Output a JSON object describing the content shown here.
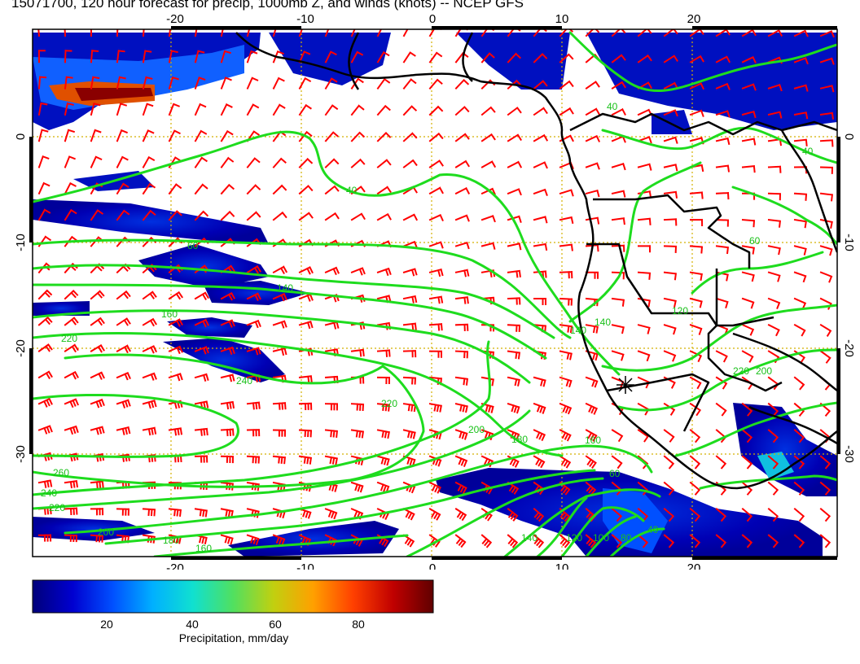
{
  "title": "15071700, 120 hour forecast for precip, 1000mb Z, and winds (knots) -- NCEP GFS",
  "map": {
    "lon_ticks": [
      "-20",
      "-10",
      "0",
      "10",
      "20"
    ],
    "lat_ticks": [
      "0",
      "-10",
      "-20",
      "-30"
    ],
    "contour_labels": [
      "40",
      "60",
      "80",
      "100",
      "120",
      "140",
      "160",
      "180",
      "200",
      "220",
      "240",
      "260",
      "240",
      "220",
      "200",
      "180",
      "160",
      "140",
      "120",
      "100",
      "80",
      "60",
      "40",
      "20",
      "60",
      "120",
      "160",
      "180",
      "200",
      "200"
    ],
    "colors": {
      "frame": "#000000",
      "grid": "#d4b000",
      "contour": "#1edc1e",
      "contour_label": "#19c019",
      "wind_barb": "#ff0000",
      "coast": "#000000"
    },
    "marker": "star"
  },
  "colorbar": {
    "label": "Precipitation, mm/day",
    "ticks": [
      "20",
      "40",
      "60",
      "80"
    ],
    "stops": [
      "#00007a",
      "#0000d0",
      "#0050ff",
      "#00b0ff",
      "#10e0d0",
      "#50e060",
      "#c0d010",
      "#ffa000",
      "#ff4000",
      "#c00000",
      "#600000"
    ]
  }
}
